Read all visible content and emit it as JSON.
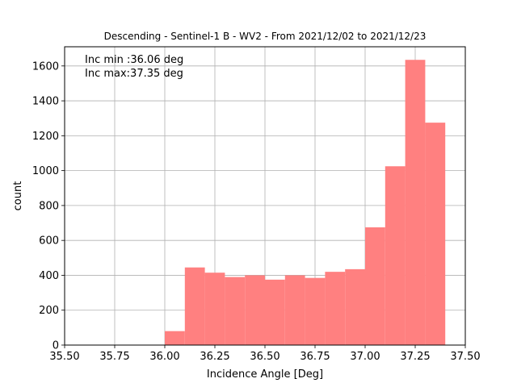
{
  "chart_data": {
    "type": "bar",
    "title": "Descending - Sentinel-1 B - WV2 - From 2021/12/02 to 2021/12/23",
    "xlabel": "Incidence Angle [Deg]",
    "ylabel": "count",
    "xlim": [
      35.5,
      37.5
    ],
    "ylim": [
      0,
      1710
    ],
    "grid": true,
    "bar_color": "#ff8080",
    "grid_color": "#b0b0b0",
    "xticks": [
      "35.50",
      "35.75",
      "36.00",
      "36.25",
      "36.50",
      "36.75",
      "37.00",
      "37.25",
      "37.50"
    ],
    "yticks": [
      "0",
      "200",
      "400",
      "600",
      "800",
      "1000",
      "1200",
      "1400",
      "1600"
    ],
    "bin_edges": [
      36.0,
      36.1,
      36.2,
      36.3,
      36.4,
      36.5,
      36.6,
      36.7,
      36.8,
      36.9,
      37.0,
      37.1,
      37.2,
      37.3,
      37.4
    ],
    "values": [
      80,
      445,
      415,
      390,
      400,
      375,
      400,
      385,
      420,
      435,
      675,
      1025,
      1635,
      1275
    ],
    "annotations": [
      "Inc min :36.06 deg",
      "Inc max:37.35 deg"
    ]
  }
}
